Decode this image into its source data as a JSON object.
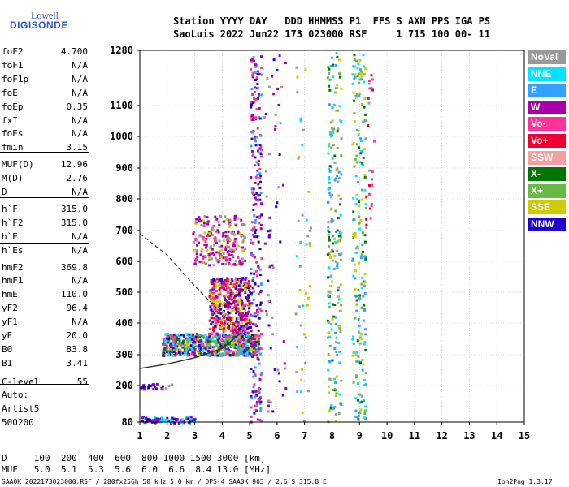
{
  "logo": {
    "line1": "Lowell",
    "line2": "DIGISONDE"
  },
  "header": {
    "row1": "Station YYYY DAY   DDD HHMMSS P1  FFS S AXN PPS IGA PS",
    "row2": "SaoLuis 2022 Jun22 173 023000 RSF     1 715 100 00- 11"
  },
  "params": [
    {
      "label": "foF2",
      "value": "4.700"
    },
    {
      "label": "foF1",
      "value": "N/A"
    },
    {
      "label": "foF1p",
      "value": "N/A"
    },
    {
      "label": "foE",
      "value": "N/A"
    },
    {
      "label": "foEp",
      "value": "0.35"
    },
    {
      "label": "fxI",
      "value": "N/A"
    },
    {
      "label": "foEs",
      "value": "N/A"
    },
    {
      "label": "fmin",
      "value": "3.15"
    },
    {
      "label": "MUF(D)",
      "value": "12.96"
    },
    {
      "label": "M(D)",
      "value": "2.76"
    },
    {
      "label": "D",
      "value": "N/A"
    },
    {
      "label": "h`F",
      "value": "315.0"
    },
    {
      "label": "h`F2",
      "value": "315.0"
    },
    {
      "label": "h`E",
      "value": "N/A"
    },
    {
      "label": "h`Es",
      "value": "N/A"
    },
    {
      "label": "hmF2",
      "value": "369.8"
    },
    {
      "label": "hmF1",
      "value": "N/A"
    },
    {
      "label": "hmE",
      "value": "110.0"
    },
    {
      "label": "yF2",
      "value": "96.4"
    },
    {
      "label": "yF1",
      "value": "N/A"
    },
    {
      "label": "yE",
      "value": "20.0"
    },
    {
      "label": "B0",
      "value": "83.8"
    },
    {
      "label": "B1",
      "value": "3.41"
    },
    {
      "label": "C-level",
      "value": "55"
    }
  ],
  "auto": {
    "line1": "Auto:",
    "line2": "Artist5",
    "line3": "500200"
  },
  "bottom": {
    "d_row": "D     100  200  400  600  800 1000 1500 3000 [km]",
    "muf_row": "MUF   5.0  5.1  5.3  5.6  6.0  6.6  8.4 13.0 [MHz]"
  },
  "footer": {
    "left": "SAA0K_2022173023000.RSF / 280fx256h 50 kHz 5.0 km / DPS-4 SAA0K 903 / 2.6 S 315.8 E",
    "right": "Ion2Png 1.3.17"
  },
  "legend": [
    {
      "label": "NoVal",
      "color": "#999999"
    },
    {
      "label": "NNE",
      "color": "#00e5ff"
    },
    {
      "label": "E",
      "color": "#33a1ff"
    },
    {
      "label": "W",
      "color": "#aa00aa"
    },
    {
      "label": "Vo-",
      "color": "#ff3399"
    },
    {
      "label": "Vo+",
      "color": "#ee0033"
    },
    {
      "label": "SSW",
      "color": "#f5a0a0"
    },
    {
      "label": "X-",
      "color": "#007700"
    },
    {
      "label": "X+",
      "color": "#66bb44"
    },
    {
      "label": "SSE",
      "color": "#cccc00"
    },
    {
      "label": "NNW",
      "color": "#2200cc"
    }
  ],
  "chart_data": {
    "type": "scatter",
    "title": "",
    "xlabel": "",
    "ylabel": "",
    "xlim": [
      1,
      15
    ],
    "ylim": [
      80,
      1280
    ],
    "x_ticks": [
      1,
      2,
      3,
      4,
      5,
      6,
      7,
      8,
      9,
      10,
      11,
      12,
      13,
      14,
      15
    ],
    "y_ticks": [
      80,
      200,
      300,
      400,
      500,
      600,
      700,
      800,
      900,
      1000,
      1100,
      1280
    ],
    "x_scale": "linear",
    "y_scale": "nonlinear",
    "grid": true,
    "profile_dashed": [
      [
        1.0,
        690
      ],
      [
        2.0,
        620
      ],
      [
        3.0,
        520
      ],
      [
        4.0,
        430
      ],
      [
        4.7,
        370
      ]
    ],
    "profile_solid": [
      [
        1.0,
        255
      ],
      [
        2.0,
        270
      ],
      [
        3.0,
        290
      ],
      [
        4.0,
        320
      ],
      [
        4.7,
        370
      ]
    ],
    "clusters": [
      {
        "x": [
          1.8,
          5.3
        ],
        "y": [
          300,
          370
        ],
        "colors": [
          "#aa00aa",
          "#2200cc",
          "#ff3399",
          "#007700",
          "#66bb44",
          "#33a1ff",
          "#00e5ff",
          "#cccc00"
        ],
        "n": 700
      },
      {
        "x": [
          3.5,
          5.0
        ],
        "y": [
          370,
          550
        ],
        "colors": [
          "#aa00aa",
          "#ff3399",
          "#2200cc",
          "#ee0033",
          "#cccc00"
        ],
        "n": 450
      },
      {
        "x": [
          2.9,
          4.8
        ],
        "y": [
          590,
          750
        ],
        "colors": [
          "#aa00aa",
          "#aa00aa",
          "#ff3399",
          "#cccc00",
          "#999999"
        ],
        "n": 230
      },
      {
        "x": [
          5.0,
          5.4
        ],
        "y": [
          80,
          1280
        ],
        "colors": [
          "#2200cc",
          "#aa00aa",
          "#ff3399",
          "#33a1ff"
        ],
        "n": 260
      },
      {
        "x": [
          7.8,
          8.3
        ],
        "y": [
          80,
          1280
        ],
        "colors": [
          "#00e5ff",
          "#33a1ff",
          "#007700",
          "#66bb44",
          "#cccc00",
          "#999999"
        ],
        "n": 220
      },
      {
        "x": [
          8.7,
          9.2
        ],
        "y": [
          80,
          1280
        ],
        "colors": [
          "#00e5ff",
          "#33a1ff",
          "#007700",
          "#cccc00",
          "#66bb44"
        ],
        "n": 200
      },
      {
        "x": [
          6.6,
          7.2
        ],
        "y": [
          80,
          1280
        ],
        "colors": [
          "#999999",
          "#00e5ff",
          "#cccc00"
        ],
        "n": 45
      },
      {
        "x": [
          1.0,
          3.0
        ],
        "y": [
          80,
          100
        ],
        "colors": [
          "#2200cc",
          "#aa00aa",
          "#00e5ff"
        ],
        "n": 80
      },
      {
        "x": [
          1.0,
          2.2
        ],
        "y": [
          190,
          210
        ],
        "colors": [
          "#2200cc",
          "#aa00aa",
          "#999999"
        ],
        "n": 30
      },
      {
        "x": [
          5.5,
          6.3
        ],
        "y": [
          80,
          1280
        ],
        "colors": [
          "#2200cc",
          "#999999",
          "#aa00aa"
        ],
        "n": 60
      },
      {
        "x": [
          9.2,
          9.5
        ],
        "y": [
          700,
          1280
        ],
        "colors": [
          "#ff3399",
          "#ee0033",
          "#999999"
        ],
        "n": 25
      }
    ]
  }
}
